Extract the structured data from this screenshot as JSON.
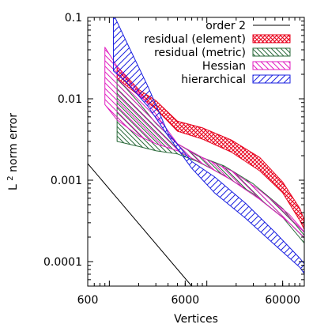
{
  "chart_data": {
    "type": "line",
    "title": "",
    "xlabel": "Vertices",
    "ylabel_base": "L",
    "ylabel_sup": "2",
    "ylabel_rest": " norm error",
    "x_scale": "log",
    "y_scale": "log",
    "xlim": [
      600,
      100000
    ],
    "ylim": [
      5e-05,
      0.1
    ],
    "x_ticks": [
      {
        "value": 600,
        "label": "600"
      },
      {
        "value": 6000,
        "label": "6000"
      },
      {
        "value": 60000,
        "label": "60000"
      }
    ],
    "y_ticks": [
      {
        "value": 0.1,
        "label": "0.1"
      },
      {
        "value": 0.01,
        "label": "0.01"
      },
      {
        "value": 0.001,
        "label": "0.001"
      },
      {
        "value": 0.0001,
        "label": "0.0001"
      }
    ],
    "grid": false,
    "legend_position": "top-right",
    "order_line": {
      "name": "order 2",
      "color": "#000000",
      "points": [
        [
          600,
          0.0016
        ],
        [
          7000,
          5e-05
        ]
      ]
    },
    "series": [
      {
        "name": "residual (element)",
        "color": "#e8001c",
        "pattern": "crosshatch",
        "x": [
          1200,
          2000,
          3000,
          5000,
          9000,
          18000,
          35000,
          60000,
          90000,
          120000
        ],
        "upper": [
          0.025,
          0.013,
          0.0095,
          0.0053,
          0.0044,
          0.0031,
          0.0019,
          0.00095,
          0.00045,
          0.00018
        ],
        "lower": [
          0.018,
          0.011,
          0.0075,
          0.004,
          0.0032,
          0.0022,
          0.0013,
          0.0007,
          0.00032,
          0.00016
        ]
      },
      {
        "name": "residual (metric)",
        "color": "#2a6a3a",
        "pattern": "backslash",
        "x": [
          1200,
          2000,
          3000,
          5000,
          8000,
          15000,
          30000,
          60000,
          120000
        ],
        "upper": [
          0.018,
          0.009,
          0.005,
          0.0028,
          0.002,
          0.0015,
          0.0009,
          0.00045,
          0.00016
        ],
        "lower": [
          0.003,
          0.0026,
          0.0023,
          0.0021,
          0.0017,
          0.00115,
          0.00068,
          0.00035,
          0.00013
        ]
      },
      {
        "name": "Hessian",
        "color": "#e020c0",
        "pattern": "backslash",
        "x": [
          900,
          1200,
          2000,
          3000,
          5000,
          9000,
          18000,
          35000,
          70000,
          120000
        ],
        "upper": [
          0.043,
          0.025,
          0.012,
          0.0065,
          0.0028,
          0.0019,
          0.0013,
          0.00075,
          0.00038,
          0.00018
        ],
        "lower": [
          0.0085,
          0.0055,
          0.0035,
          0.0028,
          0.0023,
          0.0016,
          0.001,
          0.00058,
          0.0003,
          0.00016
        ]
      },
      {
        "name": "hierarchical",
        "color": "#1a20e0",
        "pattern": "slash",
        "x": [
          1100,
          1500,
          2500,
          4000,
          7000,
          12000,
          25000,
          50000,
          90000,
          120000
        ],
        "upper": [
          0.11,
          0.05,
          0.014,
          0.0038,
          0.0017,
          0.0011,
          0.00052,
          0.00023,
          0.00011,
          7.2e-05
        ],
        "lower": [
          0.022,
          0.016,
          0.008,
          0.0035,
          0.0014,
          0.0007,
          0.00034,
          0.00016,
          8.5e-05,
          5.2e-05
        ]
      }
    ]
  }
}
